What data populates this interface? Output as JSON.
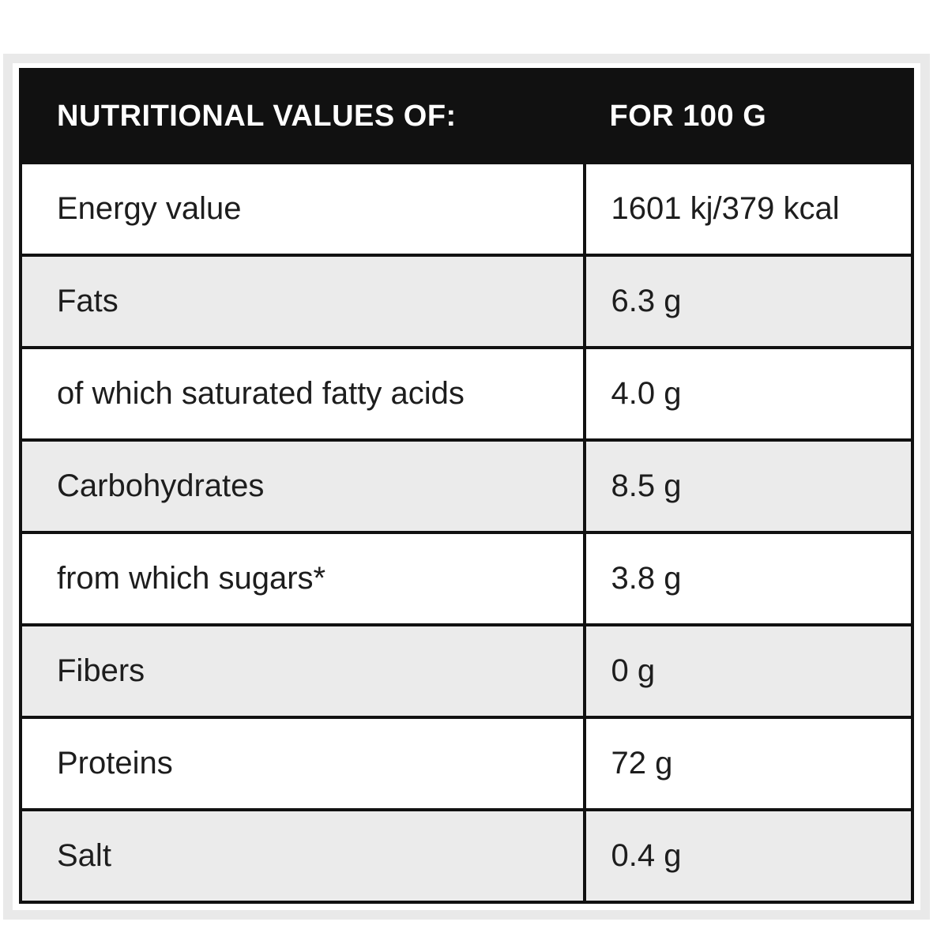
{
  "table": {
    "header": {
      "label_col": "NUTRITIONAL VALUES OF:",
      "value_col": "FOR 100 G"
    },
    "rows": [
      {
        "label": "Energy value",
        "value": "1601 kj/379 kcal"
      },
      {
        "label": "Fats",
        "value": "6.3 g"
      },
      {
        "label": "of which saturated fatty acids",
        "value": "4.0 g"
      },
      {
        "label": "Carbohydrates",
        "value": "8.5 g"
      },
      {
        "label": "from which sugars*",
        "value": "3.8 g"
      },
      {
        "label": "Fibers",
        "value": "0 g"
      },
      {
        "label": "Proteins",
        "value": "72 g"
      },
      {
        "label": "Salt",
        "value": "0.4 g"
      }
    ],
    "colors": {
      "header_bg": "#111111",
      "header_text": "#ffffff",
      "row_bg": "#ffffff",
      "row_alt_bg": "#ebebeb",
      "border": "#111111",
      "frame": "#e9e9e9",
      "text": "#1d1d1d"
    }
  }
}
